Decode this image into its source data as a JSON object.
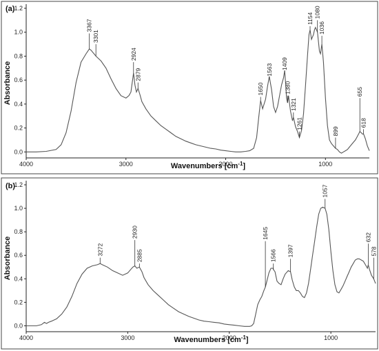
{
  "chart_data": [
    {
      "type": "line",
      "panel_label": "(a)",
      "xlabel": "Wavenumbers [cm",
      "xlabel_sup": "-1",
      "xlabel_end": "]",
      "ylabel": "Absorbance",
      "xlim": [
        4000,
        560
      ],
      "ylim": [
        -0.05,
        1.2
      ],
      "x_ticks": [
        4000,
        3000,
        2000,
        1000
      ],
      "x_tick_labels": [
        "4000",
        "3000",
        "2000",
        "1000"
      ],
      "y_ticks": [
        0.0,
        0.2,
        0.4,
        0.6,
        0.8,
        1.0,
        1.2
      ],
      "y_tick_labels": [
        "0.0",
        "0.2",
        "0.4",
        "0.6",
        "0.8",
        "1.0",
        "1.2"
      ],
      "peak_labels": [
        {
          "x": 3367,
          "y": 0.99,
          "label": "3367"
        },
        {
          "x": 3301,
          "y": 0.9,
          "label": "3301"
        },
        {
          "x": 2924,
          "y": 0.75,
          "label": "2924"
        },
        {
          "x": 2879,
          "y": 0.58,
          "label": "2879"
        },
        {
          "x": 1650,
          "y": 0.46,
          "label": "1650"
        },
        {
          "x": 1563,
          "y": 0.62,
          "label": "1563"
        },
        {
          "x": 1409,
          "y": 0.67,
          "label": "1409"
        },
        {
          "x": 1380,
          "y": 0.47,
          "label": "1380"
        },
        {
          "x": 1321,
          "y": 0.33,
          "label": "1321"
        },
        {
          "x": 1261,
          "y": 0.17,
          "label": "1261"
        },
        {
          "x": 1154,
          "y": 1.05,
          "label": "1154"
        },
        {
          "x": 1080,
          "y": 1.1,
          "label": "1080"
        },
        {
          "x": 1036,
          "y": 0.97,
          "label": "1036"
        },
        {
          "x": 899,
          "y": 0.12,
          "label": "899"
        },
        {
          "x": 655,
          "y": 0.45,
          "label": "655"
        },
        {
          "x": 618,
          "y": 0.19,
          "label": "618"
        }
      ],
      "series": [
        {
          "x": [
            4000,
            3900,
            3800,
            3700,
            3650,
            3600,
            3550,
            3500,
            3450,
            3400,
            3367,
            3350,
            3301,
            3250,
            3200,
            3150,
            3100,
            3050,
            3000,
            2970,
            2950,
            2924,
            2910,
            2895,
            2879,
            2860,
            2840,
            2800,
            2750,
            2700,
            2650,
            2600,
            2550,
            2500,
            2450,
            2400,
            2350,
            2300,
            2250,
            2200,
            2150,
            2100,
            2050,
            2000,
            1950,
            1900,
            1850,
            1800,
            1760,
            1720,
            1690,
            1670,
            1650,
            1630,
            1600,
            1580,
            1563,
            1540,
            1520,
            1500,
            1480,
            1460,
            1440,
            1420,
            1409,
            1400,
            1390,
            1380,
            1370,
            1350,
            1330,
            1321,
            1300,
            1280,
            1261,
            1240,
            1220,
            1200,
            1180,
            1165,
            1154,
            1140,
            1120,
            1110,
            1100,
            1080,
            1060,
            1050,
            1036,
            1020,
            1000,
            980,
            960,
            940,
            920,
            899,
            880,
            860,
            840,
            820,
            800,
            780,
            760,
            740,
            720,
            700,
            680,
            655,
            640,
            630,
            618,
            600,
            580,
            560
          ],
          "y": [
            0.0,
            0.0,
            0.005,
            0.02,
            0.06,
            0.16,
            0.34,
            0.58,
            0.75,
            0.82,
            0.86,
            0.85,
            0.8,
            0.76,
            0.7,
            0.61,
            0.53,
            0.47,
            0.45,
            0.47,
            0.5,
            0.66,
            0.56,
            0.5,
            0.53,
            0.48,
            0.42,
            0.36,
            0.3,
            0.26,
            0.22,
            0.19,
            0.16,
            0.13,
            0.11,
            0.09,
            0.075,
            0.06,
            0.05,
            0.04,
            0.03,
            0.025,
            0.015,
            0.01,
            0.005,
            0.0,
            0.0,
            0.005,
            0.01,
            0.03,
            0.12,
            0.28,
            0.43,
            0.36,
            0.44,
            0.55,
            0.63,
            0.52,
            0.38,
            0.33,
            0.38,
            0.47,
            0.56,
            0.62,
            0.68,
            0.58,
            0.45,
            0.41,
            0.47,
            0.34,
            0.26,
            0.29,
            0.21,
            0.17,
            0.12,
            0.18,
            0.32,
            0.55,
            0.8,
            0.98,
            1.02,
            0.94,
            0.98,
            1.02,
            1.04,
            1.0,
            0.84,
            0.82,
            0.9,
            0.75,
            0.45,
            0.22,
            0.1,
            0.07,
            0.05,
            0.03,
            0.02,
            0.0,
            -0.01,
            0.0,
            0.01,
            0.02,
            0.04,
            0.06,
            0.08,
            0.1,
            0.13,
            0.17,
            0.16,
            0.15,
            0.15,
            0.11,
            0.05,
            0.01
          ]
        }
      ]
    },
    {
      "type": "line",
      "panel_label": "(b)",
      "xlabel": "Wavenumbers [cm",
      "xlabel_sup": "-1",
      "xlabel_end": "]",
      "ylabel": "Absorbance",
      "xlim": [
        4000,
        560
      ],
      "ylim": [
        -0.05,
        1.2
      ],
      "x_ticks": [
        4000,
        3000,
        2000,
        1000
      ],
      "x_tick_labels": [
        "4000",
        "3000",
        "2000",
        "1000"
      ],
      "y_ticks": [
        0.0,
        0.2,
        0.4,
        0.6,
        0.8,
        1.0,
        1.2
      ],
      "y_tick_labels": [
        "0.0",
        "0.2",
        "0.4",
        "0.6",
        "0.8",
        "1.0",
        "1.2"
      ],
      "peak_labels": [
        {
          "x": 3272,
          "y": 0.58,
          "label": "3272"
        },
        {
          "x": 2930,
          "y": 0.73,
          "label": "2930"
        },
        {
          "x": 2885,
          "y": 0.53,
          "label": "2885"
        },
        {
          "x": 1645,
          "y": 0.72,
          "label": "1645"
        },
        {
          "x": 1566,
          "y": 0.53,
          "label": "1566"
        },
        {
          "x": 1397,
          "y": 0.57,
          "label": "1397"
        },
        {
          "x": 1057,
          "y": 1.08,
          "label": "1057"
        },
        {
          "x": 632,
          "y": 0.7,
          "label": "632"
        },
        {
          "x": 578,
          "y": 0.58,
          "label": "578"
        }
      ],
      "series": [
        {
          "x": [
            4000,
            3950,
            3900,
            3850,
            3820,
            3800,
            3780,
            3750,
            3700,
            3650,
            3600,
            3550,
            3500,
            3450,
            3400,
            3350,
            3300,
            3272,
            3250,
            3200,
            3150,
            3100,
            3050,
            3000,
            2970,
            2950,
            2930,
            2910,
            2885,
            2860,
            2840,
            2800,
            2750,
            2700,
            2650,
            2600,
            2550,
            2500,
            2450,
            2400,
            2350,
            2300,
            2250,
            2200,
            2150,
            2100,
            2050,
            2000,
            1950,
            1900,
            1850,
            1800,
            1780,
            1760,
            1740,
            1720,
            1700,
            1680,
            1660,
            1645,
            1630,
            1610,
            1590,
            1570,
            1566,
            1550,
            1530,
            1510,
            1490,
            1470,
            1450,
            1420,
            1397,
            1380,
            1360,
            1340,
            1320,
            1300,
            1280,
            1260,
            1240,
            1220,
            1200,
            1180,
            1160,
            1140,
            1120,
            1100,
            1080,
            1057,
            1040,
            1020,
            1000,
            980,
            960,
            940,
            920,
            900,
            880,
            860,
            840,
            820,
            800,
            780,
            760,
            740,
            720,
            700,
            680,
            660,
            640,
            632,
            620,
            600,
            578,
            560
          ],
          "y": [
            0.0,
            0.0,
            0.0,
            0.01,
            0.03,
            0.02,
            0.03,
            0.04,
            0.06,
            0.1,
            0.16,
            0.25,
            0.36,
            0.44,
            0.49,
            0.51,
            0.52,
            0.53,
            0.52,
            0.5,
            0.47,
            0.45,
            0.43,
            0.45,
            0.48,
            0.5,
            0.51,
            0.49,
            0.5,
            0.46,
            0.41,
            0.35,
            0.3,
            0.26,
            0.22,
            0.18,
            0.15,
            0.12,
            0.1,
            0.08,
            0.065,
            0.05,
            0.04,
            0.035,
            0.03,
            0.025,
            0.015,
            0.01,
            0.005,
            0.0,
            -0.005,
            -0.005,
            0.0,
            0.02,
            0.1,
            0.18,
            0.22,
            0.25,
            0.3,
            0.33,
            0.38,
            0.45,
            0.49,
            0.49,
            0.48,
            0.46,
            0.38,
            0.36,
            0.35,
            0.4,
            0.44,
            0.47,
            0.46,
            0.39,
            0.33,
            0.3,
            0.3,
            0.28,
            0.25,
            0.24,
            0.28,
            0.36,
            0.48,
            0.6,
            0.72,
            0.84,
            0.95,
            1.0,
            1.01,
            1.0,
            0.95,
            0.82,
            0.63,
            0.47,
            0.35,
            0.29,
            0.28,
            0.31,
            0.34,
            0.38,
            0.42,
            0.46,
            0.5,
            0.53,
            0.56,
            0.57,
            0.57,
            0.56,
            0.55,
            0.52,
            0.49,
            0.52,
            0.48,
            0.43,
            0.4,
            0.36
          ]
        }
      ]
    }
  ]
}
